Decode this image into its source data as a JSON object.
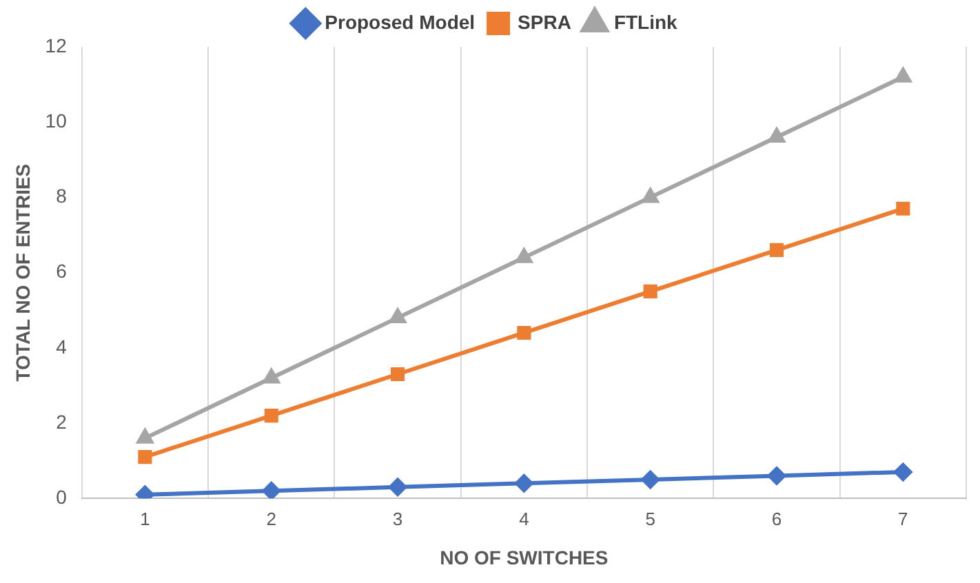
{
  "chart_data": {
    "type": "line",
    "xlabel": "NO OF SWITCHES",
    "ylabel": "TOTAL NO OF ENTRIES",
    "categories": [
      "1",
      "2",
      "3",
      "4",
      "5",
      "6",
      "7"
    ],
    "series": [
      {
        "name": "Proposed Model",
        "color": "#4472c4",
        "marker": "diamond",
        "values": [
          0.1,
          0.2,
          0.3,
          0.4,
          0.5,
          0.6,
          0.7
        ]
      },
      {
        "name": "SPRA",
        "color": "#ed7d31",
        "marker": "square",
        "values": [
          1.1,
          2.2,
          3.3,
          4.4,
          5.5,
          6.6,
          7.7
        ]
      },
      {
        "name": "FTLink",
        "color": "#a5a5a5",
        "marker": "triangle",
        "values": [
          1.6,
          3.2,
          4.8,
          6.4,
          8,
          9.6,
          11.2
        ]
      }
    ],
    "ylim": [
      0,
      12
    ],
    "yticks": [
      0,
      2,
      4,
      6,
      8,
      10,
      12
    ],
    "grid": "x",
    "legend": "top",
    "line_style": "solid"
  }
}
